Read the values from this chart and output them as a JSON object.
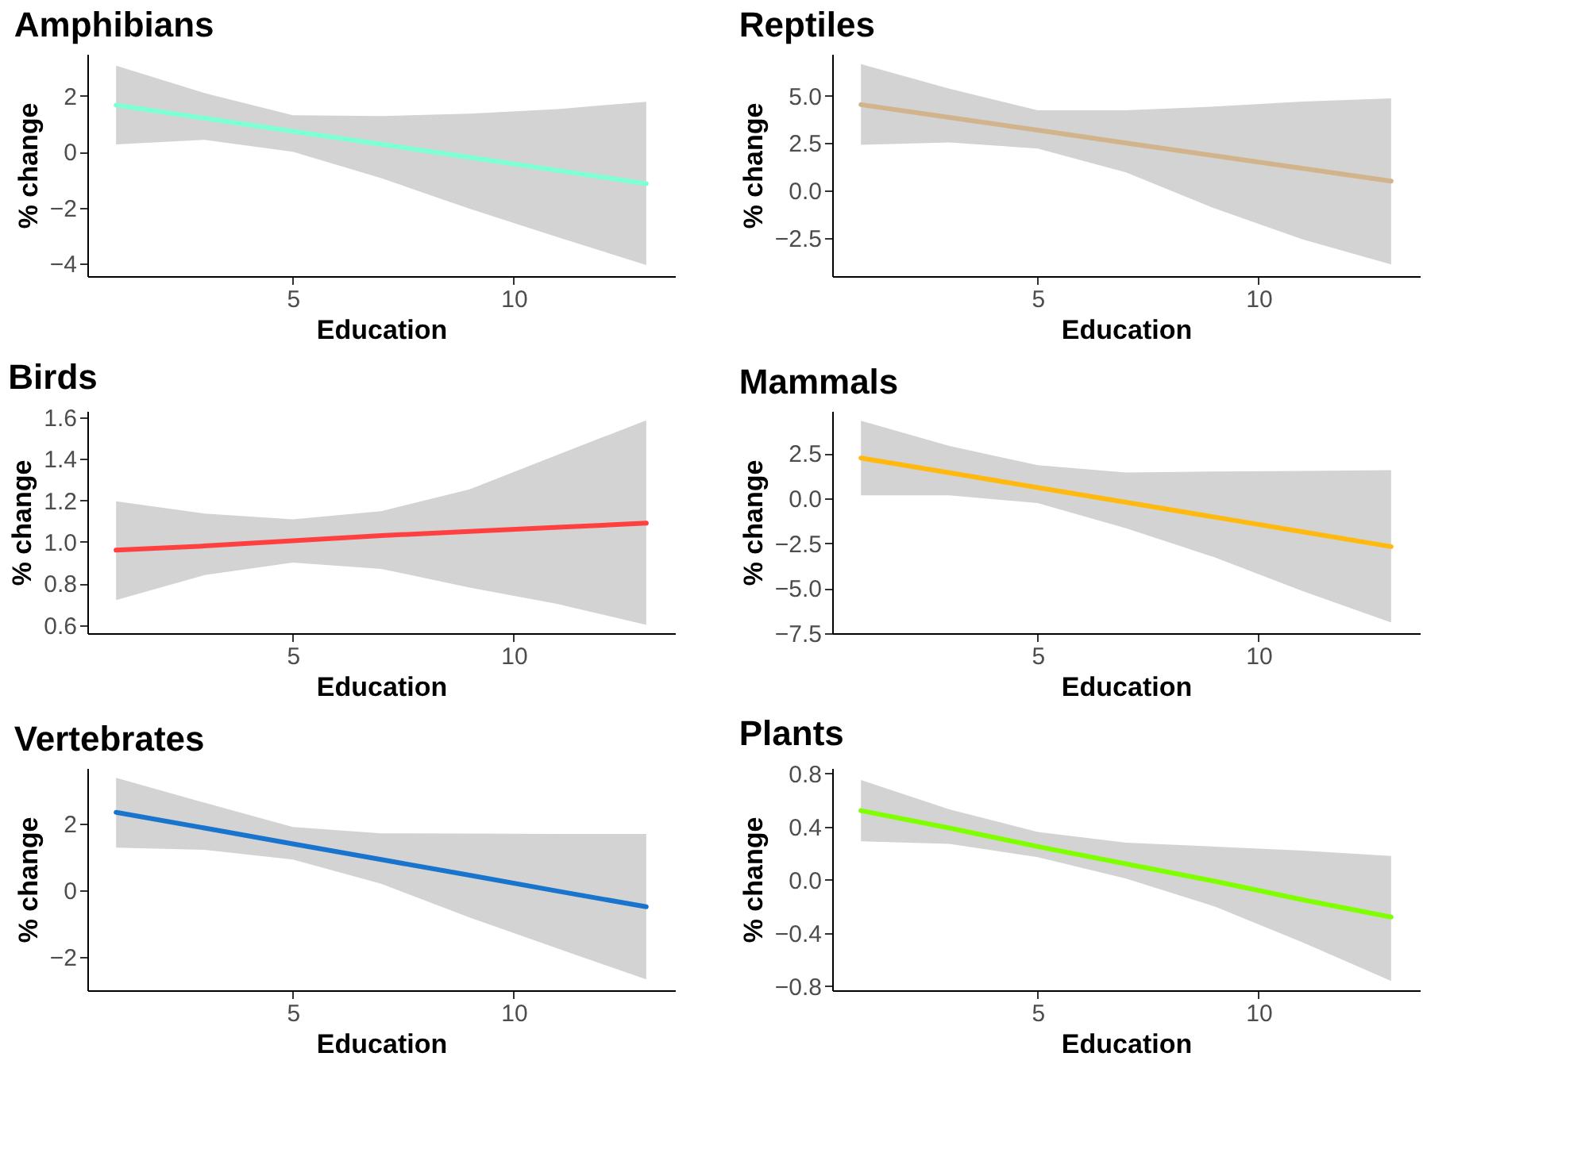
{
  "chart_data": [
    {
      "type": "line",
      "title": "Amphibians",
      "xlabel": "Education",
      "ylabel": "% change",
      "x": [
        1,
        3,
        5,
        7,
        9,
        11,
        13
      ],
      "xlim": [
        0.35,
        13.65
      ],
      "xticks": [
        5,
        10
      ],
      "ylim": [
        -4.45,
        3.5
      ],
      "yticks": [
        {
          "value": -4,
          "label": "−4"
        },
        {
          "value": -2,
          "label": "−2"
        },
        0,
        2
      ],
      "series": [
        {
          "color": "#7fffd4",
          "values": [
            1.67,
            1.2,
            0.73,
            0.27,
            -0.2,
            -0.67,
            -1.14
          ],
          "lower": [
            0.26,
            0.43,
            0.0,
            -0.94,
            -2.04,
            -3.06,
            -4.05
          ],
          "upper": [
            3.08,
            2.1,
            1.31,
            1.28,
            1.36,
            1.53,
            1.79
          ]
        }
      ]
    },
    {
      "type": "line",
      "title": "Reptiles",
      "xlabel": "Education",
      "ylabel": "% change",
      "x": [
        1,
        3,
        5,
        7,
        9,
        11,
        13
      ],
      "xlim": [
        0.35,
        13.65
      ],
      "xticks": [
        5,
        10
      ],
      "ylim": [
        -4.5,
        7.2
      ],
      "yticks": [
        {
          "value": -2.5,
          "label": "−2.5"
        },
        {
          "value": 0,
          "label": "0.0"
        },
        2.5,
        {
          "value": 5,
          "label": "5.0"
        }
      ],
      "series": [
        {
          "color": "#d2b48c",
          "values": [
            4.53,
            3.86,
            3.19,
            2.51,
            1.84,
            1.17,
            0.5
          ],
          "lower": [
            2.42,
            2.54,
            2.22,
            0.96,
            -0.93,
            -2.57,
            -3.88
          ],
          "upper": [
            6.67,
            5.37,
            4.23,
            4.23,
            4.43,
            4.69,
            4.86
          ]
        }
      ]
    },
    {
      "type": "line",
      "title": "Birds",
      "xlabel": "Education",
      "ylabel": "% change",
      "x": [
        1,
        3,
        5,
        7,
        9,
        11,
        13
      ],
      "xlim": [
        0.35,
        13.65
      ],
      "xticks": [
        5,
        10
      ],
      "ylim": [
        0.56,
        1.63
      ],
      "yticks": [
        0.6,
        0.8,
        {
          "value": 1,
          "label": "1.0"
        },
        1.2,
        1.4,
        1.6
      ],
      "series": [
        {
          "color": "#ff4040",
          "values": [
            0.96,
            0.98,
            1.005,
            1.03,
            1.05,
            1.07,
            1.09
          ],
          "lower": [
            0.72,
            0.84,
            0.9,
            0.87,
            0.78,
            0.7,
            0.6
          ],
          "upper": [
            1.195,
            1.136,
            1.108,
            1.148,
            1.253,
            1.42,
            1.585
          ]
        }
      ]
    },
    {
      "type": "line",
      "title": "Mammals",
      "xlabel": "Education",
      "ylabel": "% change",
      "x": [
        1,
        3,
        5,
        7,
        9,
        11,
        13
      ],
      "xlim": [
        0.35,
        13.65
      ],
      "xticks": [
        5,
        10
      ],
      "ylim": [
        -7.5,
        4.84
      ],
      "yticks": [
        {
          "value": -7.5,
          "label": "−7.5"
        },
        {
          "value": -5,
          "label": "−5.0"
        },
        {
          "value": -2.5,
          "label": "−2.5"
        },
        {
          "value": 0,
          "label": "0.0"
        },
        2.5
      ],
      "series": [
        {
          "color": "#ffb90f",
          "values": [
            2.23,
            1.41,
            0.59,
            -0.23,
            -1.05,
            -1.87,
            -2.69
          ],
          "lower": [
            0.16,
            0.16,
            -0.27,
            -1.67,
            -3.28,
            -5.16,
            -6.91
          ],
          "upper": [
            4.3,
            2.9,
            1.83,
            1.42,
            1.48,
            1.51,
            1.56
          ]
        }
      ]
    },
    {
      "type": "line",
      "title": "Vertebrates",
      "xlabel": "Education",
      "ylabel": "% change",
      "x": [
        1,
        3,
        5,
        7,
        9,
        11,
        13
      ],
      "xlim": [
        0.35,
        13.65
      ],
      "xticks": [
        5,
        10
      ],
      "ylim": [
        -3.0,
        3.68
      ],
      "yticks": [
        {
          "value": -2,
          "label": "−2"
        },
        0,
        2
      ],
      "series": [
        {
          "color": "#1874cd",
          "values": [
            2.35,
            1.88,
            1.4,
            0.93,
            0.46,
            -0.02,
            -0.49
          ],
          "lower": [
            1.29,
            1.22,
            0.93,
            0.2,
            -0.81,
            -1.75,
            -2.67
          ],
          "upper": [
            3.39,
            2.64,
            1.91,
            1.72,
            1.71,
            1.7,
            1.7
          ]
        }
      ]
    },
    {
      "type": "line",
      "title": "Plants",
      "xlabel": "Education",
      "ylabel": "% change",
      "x": [
        1,
        3,
        5,
        7,
        9,
        11,
        13
      ],
      "xlim": [
        0.35,
        13.65
      ],
      "xticks": [
        5,
        10
      ],
      "ylim": [
        -0.83,
        0.84
      ],
      "yticks": [
        {
          "value": -0.8,
          "label": "−0.8"
        },
        {
          "value": -0.4,
          "label": "−0.4"
        },
        {
          "value": 0,
          "label": "0.0"
        },
        0.4,
        0.8
      ],
      "series": [
        {
          "color": "#7fff00",
          "values": [
            0.52,
            0.39,
            0.25,
            0.12,
            -0.01,
            -0.15,
            -0.28
          ],
          "lower": [
            0.29,
            0.27,
            0.17,
            0.01,
            -0.2,
            -0.47,
            -0.76
          ],
          "upper": [
            0.75,
            0.53,
            0.36,
            0.28,
            0.25,
            0.22,
            0.18
          ]
        }
      ]
    }
  ]
}
